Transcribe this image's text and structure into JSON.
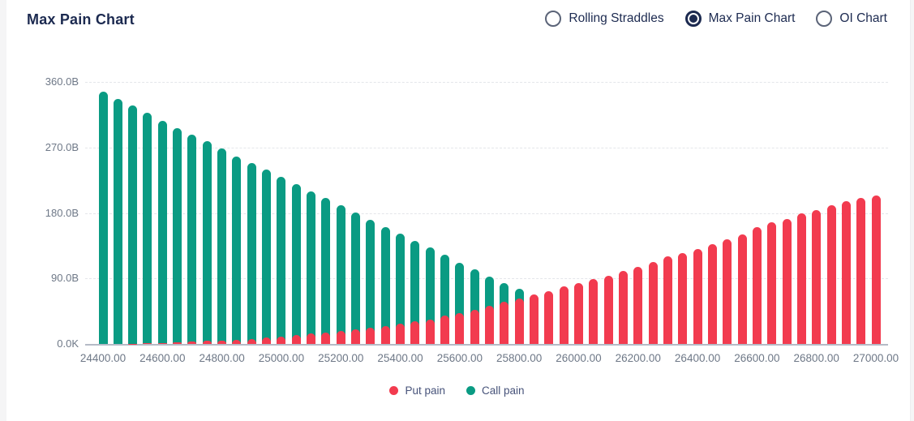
{
  "header": {
    "title": "Max Pain Chart"
  },
  "view_toggle": {
    "options": [
      {
        "label": "Rolling Straddles",
        "selected": false
      },
      {
        "label": "Max Pain Chart",
        "selected": true
      },
      {
        "label": "OI Chart",
        "selected": false
      }
    ]
  },
  "legend": [
    {
      "label": "Put pain",
      "color": "#f23b4f"
    },
    {
      "label": "Call pain",
      "color": "#0a9b83"
    }
  ],
  "colors": {
    "put": "#f23b4f",
    "call": "#0a9b83",
    "accent_navy": "#1c2a50",
    "axis_text": "#6e7887",
    "gridline": "#e4e6ea",
    "axis_line": "#b5bbc6"
  },
  "chart_data": {
    "type": "bar",
    "title": "Max Pain Chart",
    "xlabel": "",
    "ylabel": "",
    "unit": "B",
    "ylim": [
      0,
      360
    ],
    "grid": true,
    "legend_position": "bottom",
    "overlay_from_baseline": true,
    "x": [
      24400,
      24450,
      24500,
      24550,
      24600,
      24650,
      24700,
      24750,
      24800,
      24850,
      24900,
      24950,
      25000,
      25050,
      25100,
      25150,
      25200,
      25250,
      25300,
      25350,
      25400,
      25450,
      25500,
      25550,
      25600,
      25650,
      25700,
      25750,
      25800,
      25850,
      25900,
      25950,
      26000,
      26050,
      26100,
      26150,
      26200,
      26250,
      26300,
      26350,
      26400,
      26450,
      26500,
      26550,
      26600,
      26650,
      26700,
      26750,
      26800,
      26850,
      26900,
      26950,
      27000
    ],
    "series": [
      {
        "name": "Call pain",
        "color": "#0a9b83",
        "values": [
          347,
          337,
          328,
          318,
          307,
          296,
          288,
          279,
          269,
          258,
          249,
          240,
          230,
          220,
          210,
          201,
          191,
          181,
          170.5,
          161,
          152,
          141.5,
          132.5,
          123,
          111,
          102.5,
          93,
          84,
          75.8,
          0,
          0,
          0,
          0,
          0,
          0,
          0,
          0,
          0,
          0,
          0,
          0,
          0,
          0,
          0,
          0,
          0,
          0,
          0,
          0,
          0,
          0,
          0,
          0
        ]
      },
      {
        "name": "Put pain",
        "color": "#f23b4f",
        "values": [
          0,
          0,
          0.5,
          1,
          1.5,
          2.2,
          3,
          4,
          5,
          6,
          7,
          8.5,
          10,
          12,
          14,
          16,
          18,
          20.5,
          22.5,
          25,
          28,
          31,
          34,
          39,
          42,
          47,
          52,
          57.5,
          62,
          68.4,
          73,
          79,
          84,
          89,
          94,
          100,
          106,
          113,
          120,
          125,
          130,
          137,
          144,
          150,
          160,
          167,
          172,
          180,
          184,
          191,
          196,
          201,
          204
        ]
      }
    ],
    "y_ticks": [
      {
        "value": 0,
        "label": "0.0K"
      },
      {
        "value": 90,
        "label": "90.0B"
      },
      {
        "value": 180,
        "label": "180.0B"
      },
      {
        "value": 270,
        "label": "270.0B"
      },
      {
        "value": 360,
        "label": "360.0B"
      }
    ],
    "x_tick_labels": [
      "24400.00",
      "24600.00",
      "24800.00",
      "25000.00",
      "25200.00",
      "25400.00",
      "25600.00",
      "25800.00",
      "26000.00",
      "26200.00",
      "26400.00",
      "26600.00",
      "26800.00",
      "27000.00"
    ],
    "x_tick_every": 4,
    "max_pain_strike": 25850
  }
}
